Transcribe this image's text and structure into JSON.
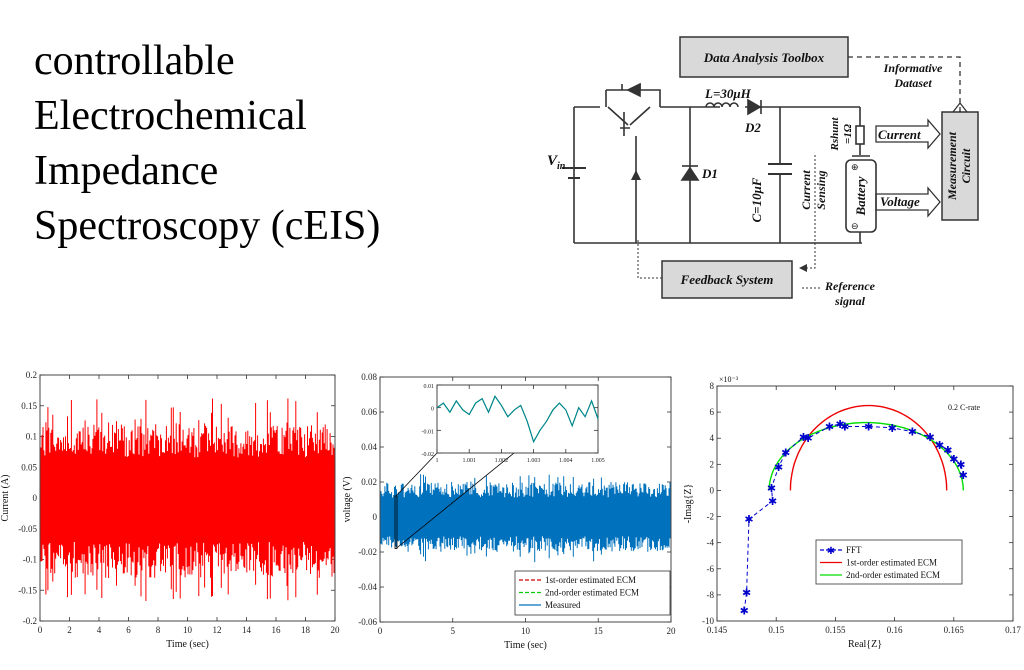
{
  "title_lines": [
    "controllable",
    "Electrochemical",
    "Impedance",
    "Spectroscopy (cEIS)"
  ],
  "circuit": {
    "data_analysis_toolbox": "Data Analysis Toolbox",
    "informative_dataset": [
      "Informative",
      "Dataset"
    ],
    "inductor": "L=30μH",
    "d2": "D2",
    "d1": "D1",
    "vin": "V",
    "vin_sub": "in",
    "capacitor": "C=10μF",
    "rshunt": [
      "Rshunt",
      "=1Ω"
    ],
    "current_sensing": [
      "Current",
      "Sensing"
    ],
    "battery": "Battery",
    "current_label": "Current",
    "voltage_label": "Voltage",
    "measurement_circuit": [
      "Measurement",
      "Circuit"
    ],
    "feedback_system": "Feedback System",
    "reference_signal": [
      "Reference",
      "signal"
    ]
  },
  "chart_data": [
    {
      "type": "line",
      "title": "",
      "xlabel": "Time (sec)",
      "ylabel": "Current (A)",
      "xlim": [
        0,
        20
      ],
      "ylim": [
        -0.2,
        0.2
      ],
      "xticks": [
        0,
        2,
        4,
        6,
        8,
        10,
        12,
        14,
        16,
        18,
        20
      ],
      "yticks": [
        -0.2,
        -0.15,
        -0.1,
        -0.05,
        0,
        0.05,
        0.1,
        0.15,
        0.2
      ],
      "ytick_labels": [
        "-0.2",
        "-0.15",
        "-0.1",
        "-0.05",
        "0",
        "0.05",
        "0.1",
        "0.15",
        "0.2"
      ],
      "series": [
        {
          "envelope": {
            "core_min": -0.13,
            "core_max": 0.12,
            "spike_min": -0.17,
            "spike_max": 0.165
          },
          "color": "#ff0000"
        }
      ]
    },
    {
      "type": "line",
      "title": "",
      "xlabel": "Time (sec)",
      "ylabel": "voltage (V)",
      "xlim": [
        0,
        20
      ],
      "ylim": [
        -0.06,
        0.08
      ],
      "xticks": [
        0,
        5,
        10,
        15,
        20
      ],
      "yticks": [
        -0.06,
        -0.04,
        -0.02,
        0,
        0.02,
        0.04,
        0.06,
        0.08
      ],
      "ytick_labels": [
        "-0.06",
        "-0.04",
        "-0.02",
        "0",
        "0.02",
        "0.04",
        "0.06",
        "0.08"
      ],
      "legend_position": "bottom-right",
      "series": [
        {
          "name": "1st-order estimated ECM",
          "color": "#cc0000",
          "dash": "dashed"
        },
        {
          "name": "2nd-order estimated ECM",
          "color": "#00cc00",
          "dash": "dashed"
        },
        {
          "name": "Measured",
          "color": "#0072bd",
          "dash": "solid",
          "envelope": {
            "core_min": -0.02,
            "core_max": 0.02,
            "spike_min": -0.026,
            "spike_max": 0.025
          }
        }
      ],
      "inset": {
        "xlim": [
          1,
          1.005
        ],
        "ylim": [
          -0.02,
          0.01
        ],
        "xticks": [
          1,
          1.001,
          1.002,
          1.003,
          1.004,
          1.005
        ],
        "xtick_labels": [
          "1",
          "1.001",
          "1.002",
          "1.003",
          "1.004",
          "1.005"
        ],
        "yticks": [
          -0.02,
          -0.01,
          0,
          0.01
        ],
        "ytick_labels": [
          "-0.02",
          "-0.01",
          "0",
          "0.01"
        ],
        "x": [
          1.0,
          1.0002,
          1.0004,
          1.0006,
          1.0008,
          1.001,
          1.0012,
          1.0014,
          1.0016,
          1.0018,
          1.002,
          1.0022,
          1.0024,
          1.0026,
          1.0028,
          1.003,
          1.0032,
          1.0034,
          1.0036,
          1.0038,
          1.004,
          1.0042,
          1.0044,
          1.0046,
          1.0048,
          1.005
        ],
        "y": [
          0.0,
          0.002,
          -0.002,
          0.003,
          -0.001,
          -0.003,
          0.002,
          0.004,
          -0.002,
          0.005,
          0.001,
          -0.004,
          -0.001,
          0.001,
          -0.006,
          -0.015,
          -0.01,
          -0.006,
          -0.001,
          0.002,
          -0.001,
          -0.008,
          0.0,
          -0.004,
          0.003,
          -0.005
        ]
      }
    },
    {
      "type": "line",
      "title": "",
      "xlabel": "Real{Z}",
      "ylabel": "-Imag{Z}",
      "y_exponent": "×10⁻³",
      "xlim": [
        0.145,
        0.17
      ],
      "ylim": [
        -10,
        8
      ],
      "xticks": [
        0.145,
        0.15,
        0.155,
        0.16,
        0.165,
        0.17
      ],
      "xtick_labels": [
        "0.145",
        "0.15",
        "0.155",
        "0.16",
        "0.165",
        "0.17"
      ],
      "yticks": [
        -10,
        -8,
        -6,
        -4,
        -2,
        0,
        2,
        4,
        6,
        8
      ],
      "ytick_labels": [
        "-10",
        "-8",
        "-6",
        "-4",
        "-2",
        "0",
        "2",
        "4",
        "6",
        "8"
      ],
      "annotation": "0.2 C-rate",
      "legend_position": "bottom-center",
      "series": [
        {
          "name": "FFT",
          "color": "#0000cc",
          "dash": "dashed",
          "marker": "star",
          "x": [
            0.1473,
            0.1475,
            0.1477,
            0.1497,
            0.1496,
            0.1502,
            0.1508,
            0.1523,
            0.1527,
            0.1545,
            0.1554,
            0.1558,
            0.1578,
            0.1598,
            0.1615,
            0.163,
            0.1638,
            0.1645,
            0.165,
            0.1656,
            0.1658
          ],
          "y": [
            -9.2,
            -7.8,
            -2.2,
            -0.8,
            0.2,
            1.8,
            2.9,
            4.1,
            4.0,
            4.9,
            5.1,
            4.9,
            4.9,
            4.8,
            4.5,
            4.1,
            3.5,
            3.1,
            2.4,
            2.0,
            1.2
          ]
        },
        {
          "name": "1st-order estimated ECM",
          "color": "#ee0000",
          "type": "arc",
          "x_min": 0.1512,
          "x_max": 0.1644,
          "peak": 6.5
        },
        {
          "name": "2nd-order estimated ECM",
          "color": "#00dd00",
          "type": "arc",
          "x_min": 0.1494,
          "x_max": 0.1658,
          "peak": 5.2
        }
      ]
    }
  ]
}
